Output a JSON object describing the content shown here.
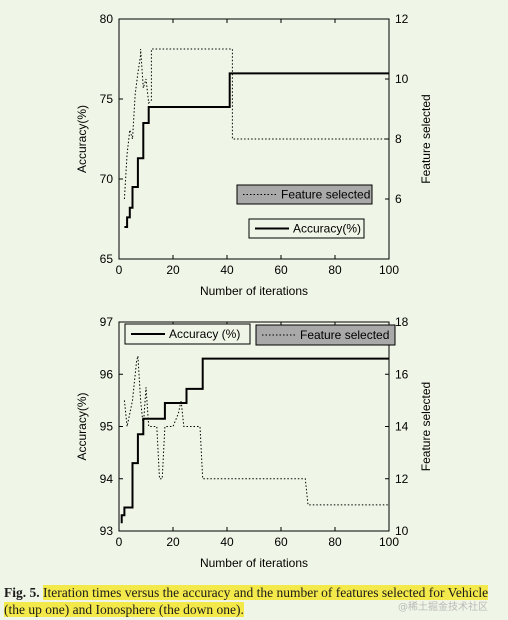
{
  "colors": {
    "background": "#f0f6e7",
    "highlight": "#f4e94a",
    "line": "#000000"
  },
  "chart_data": [
    {
      "type": "line",
      "xlabel": "Number of iterations",
      "ylabel": "Accuracy(%)",
      "y2label": "Feature selected",
      "xlim": [
        0,
        100
      ],
      "ylim": [
        65,
        80
      ],
      "y2lim": [
        4,
        12
      ],
      "xticks": [
        0,
        20,
        40,
        60,
        80,
        100
      ],
      "yticks": [
        65,
        70,
        75,
        80
      ],
      "y2ticks": [
        6,
        8,
        10,
        12
      ],
      "grid": false,
      "legend": [
        {
          "label": "Feature selected",
          "style": "dotted",
          "position": "middle-right"
        },
        {
          "label": "Accuracy(%)",
          "style": "solid",
          "position": "middle-right"
        }
      ],
      "series": [
        {
          "name": "Accuracy(%)",
          "axis": "left",
          "style": "solid",
          "x": [
            2,
            3,
            3,
            4,
            4,
            5,
            5,
            7,
            7,
            9,
            9,
            11,
            11,
            13,
            13,
            41,
            41,
            100
          ],
          "y": [
            67.0,
            67.0,
            67.6,
            67.6,
            68.2,
            68.2,
            69.5,
            69.5,
            71.3,
            71.3,
            73.5,
            73.5,
            74.5,
            74.5,
            74.5,
            74.5,
            76.6,
            76.6
          ]
        },
        {
          "name": "Feature selected",
          "axis": "right",
          "style": "dotted",
          "x": [
            2,
            3,
            4,
            5,
            6,
            7,
            8,
            8,
            9,
            10,
            11,
            12,
            12,
            13,
            13,
            42,
            42,
            100
          ],
          "y": [
            6.0,
            7.5,
            8.3,
            8.0,
            9.5,
            10.2,
            10.8,
            11.0,
            9.7,
            10.0,
            9.2,
            9.3,
            11.0,
            11.0,
            11.0,
            11.0,
            8.0,
            8.0
          ]
        }
      ]
    },
    {
      "type": "line",
      "xlabel": "Number of iterations",
      "ylabel": "Accuracy(%)",
      "y2label": "Feature selected",
      "xlim": [
        0,
        100
      ],
      "ylim": [
        93,
        97
      ],
      "y2lim": [
        10,
        18
      ],
      "xticks": [
        0,
        20,
        40,
        60,
        80,
        100
      ],
      "yticks": [
        93,
        94,
        95,
        96,
        97
      ],
      "y2ticks": [
        10,
        12,
        14,
        16,
        18
      ],
      "grid": false,
      "legend": [
        {
          "label": "Accuracy (%)",
          "style": "solid",
          "position": "top-left"
        },
        {
          "label": "Feature selected",
          "style": "dotted",
          "position": "top-right"
        }
      ],
      "series": [
        {
          "name": "Accuracy (%)",
          "axis": "left",
          "style": "solid",
          "x": [
            1,
            1,
            2,
            2,
            5,
            5,
            7,
            7,
            9,
            9,
            11,
            11,
            13,
            13,
            17,
            17,
            23,
            23,
            25,
            25,
            31,
            31,
            100
          ],
          "y": [
            93.15,
            93.3,
            93.3,
            93.45,
            93.45,
            94.3,
            94.3,
            94.85,
            94.85,
            95.15,
            95.15,
            95.15,
            95.15,
            95.15,
            95.15,
            95.45,
            95.45,
            95.45,
            95.45,
            95.72,
            95.72,
            96.3,
            96.3
          ]
        },
        {
          "name": "Feature selected",
          "axis": "right",
          "style": "dotted",
          "x": [
            2,
            3,
            4,
            5,
            6,
            6.5,
            7,
            8,
            9,
            10,
            11,
            12,
            14,
            15,
            16,
            17,
            18,
            20,
            22,
            23,
            24,
            26,
            30,
            31,
            69,
            70,
            100
          ],
          "y": [
            15.0,
            14.0,
            14.5,
            15.0,
            16.0,
            16.5,
            16.7,
            15.0,
            14.0,
            15.5,
            14.0,
            14.0,
            14.0,
            12.0,
            12.0,
            14.0,
            14.0,
            14.0,
            14.5,
            15.0,
            14.0,
            14.0,
            14.0,
            12.0,
            12.0,
            11.0,
            11.0
          ]
        }
      ]
    }
  ],
  "caption": {
    "label": "Fig. 5.",
    "text": "Iteration times versus the accuracy and the number of features selected for Vehicle (the up one) and Ionosphere (the down one)."
  },
  "watermark": "@稀土掘金技术社区"
}
